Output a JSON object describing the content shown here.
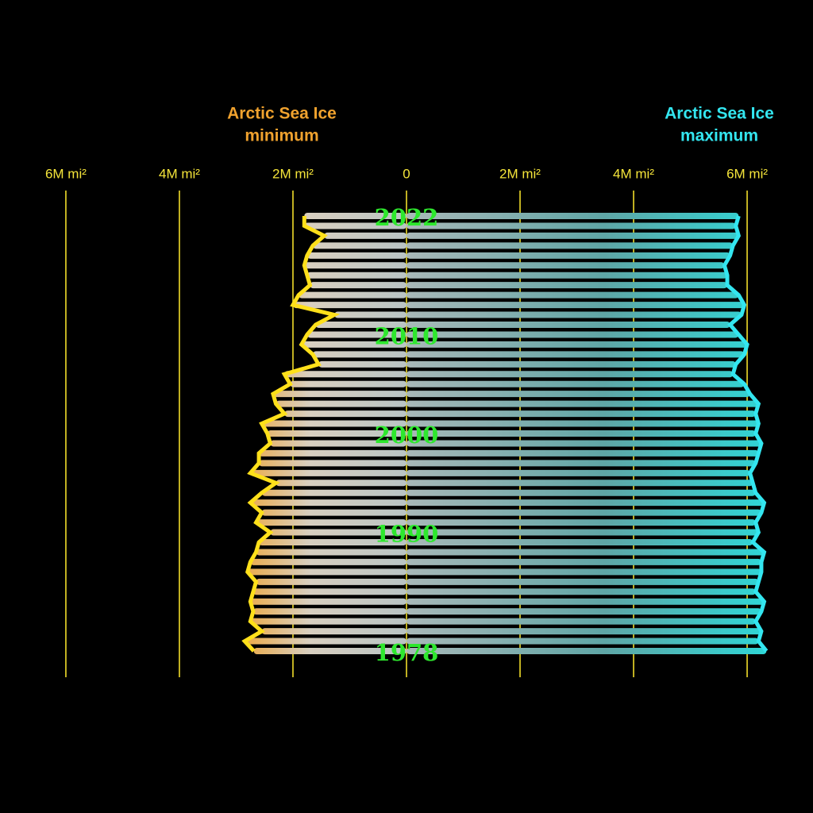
{
  "chart_data": {
    "type": "diverging-rod",
    "categories": [
      "1978",
      null,
      null,
      null,
      null,
      null,
      null,
      null,
      null,
      null,
      null,
      null,
      "1990",
      null,
      null,
      null,
      null,
      null,
      null,
      null,
      null,
      null,
      "2000",
      null,
      null,
      null,
      null,
      null,
      null,
      null,
      null,
      null,
      "2010",
      null,
      null,
      null,
      null,
      null,
      null,
      null,
      null,
      null,
      null,
      null,
      "2022"
    ],
    "series": [
      {
        "name": [
          "Arctic Sea Ice",
          "minimum"
        ],
        "color": "#f0a22e",
        "line_color": "#ffe01a",
        "direction": "left",
        "values": [
          2.69,
          2.85,
          2.55,
          2.75,
          2.7,
          2.75,
          2.7,
          2.65,
          2.8,
          2.75,
          2.65,
          2.6,
          2.4,
          2.65,
          2.55,
          2.75,
          2.55,
          2.3,
          2.75,
          2.6,
          2.6,
          2.4,
          2.45,
          2.55,
          2.15,
          2.3,
          2.35,
          2.05,
          2.15,
          1.55,
          1.65,
          1.85,
          1.75,
          1.6,
          1.27,
          2.0,
          1.9,
          1.7,
          1.75,
          1.8,
          1.75,
          1.65,
          1.45,
          1.8,
          1.8
        ]
      },
      {
        "name": [
          "Arctic Sea Ice",
          "maximum"
        ],
        "color": "#2fd6d6",
        "line_color": "#33e6f0",
        "direction": "right",
        "values": [
          6.34,
          6.2,
          6.25,
          6.15,
          6.25,
          6.3,
          6.15,
          6.2,
          6.25,
          6.25,
          6.3,
          6.1,
          6.2,
          6.15,
          6.25,
          6.3,
          6.15,
          6.1,
          6.05,
          6.15,
          6.2,
          6.25,
          6.15,
          6.2,
          6.15,
          6.2,
          6.05,
          5.95,
          5.75,
          5.8,
          5.95,
          6.0,
          5.85,
          5.7,
          5.9,
          5.95,
          5.85,
          5.65,
          5.65,
          5.6,
          5.7,
          5.75,
          5.85,
          5.8,
          5.85
        ]
      }
    ],
    "xlim": [
      -7.16,
      7.16
    ],
    "xticks": [
      {
        "value": -6,
        "label": "6M mi²"
      },
      {
        "value": -4,
        "label": "4M mi²"
      },
      {
        "value": -2,
        "label": "2M mi²"
      },
      0,
      {
        "value": 2,
        "label": "2M mi²"
      },
      {
        "value": 4,
        "label": "4M mi²"
      },
      {
        "value": 6,
        "label": "6M mi²"
      }
    ],
    "grid": true
  }
}
